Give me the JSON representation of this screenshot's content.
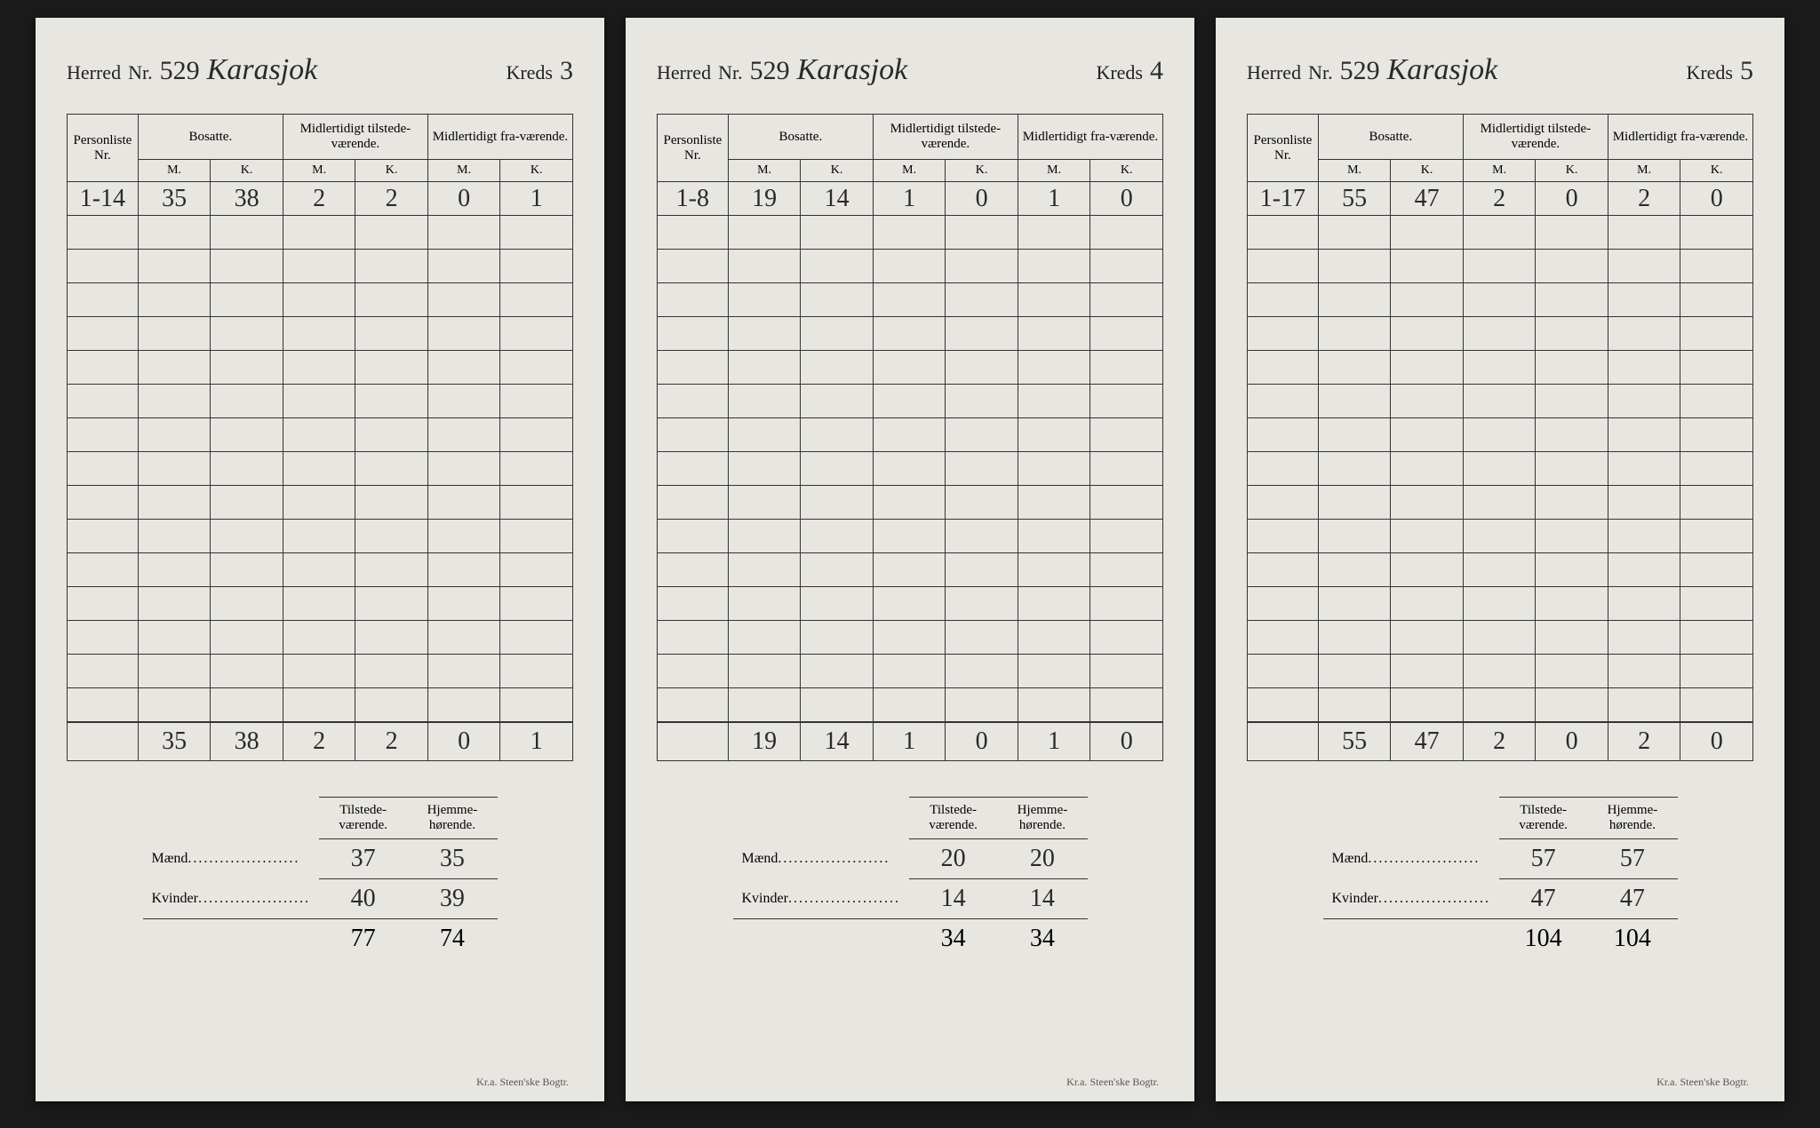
{
  "labels": {
    "herred": "Herred",
    "nr": "Nr.",
    "kreds": "Kreds",
    "personliste": "Personliste",
    "bosatte": "Bosatte.",
    "midl_tilstede": "Midlertidigt tilstede-værende.",
    "midl_fra": "Midlertidigt fra-værende.",
    "m": "M.",
    "k": "K.",
    "tilstede": "Tilstede-værende.",
    "hjemme": "Hjemme-hørende.",
    "maend": "Mænd",
    "kvinder": "Kvinder",
    "footer": "Kr.a.  Steen'ske Bogtr."
  },
  "pages": [
    {
      "herred_nr": "529",
      "herred_name": "Karasjok",
      "kreds": "3",
      "row": {
        "nr": "1-14",
        "bm": "35",
        "bk": "38",
        "tm": "2",
        "tk": "2",
        "fm": "0",
        "fk": "1"
      },
      "totals": {
        "bm": "35",
        "bk": "38",
        "tm": "2",
        "tk": "2",
        "fm": "0",
        "fk": "1"
      },
      "summary": {
        "maend_t": "37",
        "maend_h": "35",
        "kvinder_t": "40",
        "kvinder_h": "39",
        "sum_t": "77",
        "sum_h": "74"
      }
    },
    {
      "herred_nr": "529",
      "herred_name": "Karasjok",
      "kreds": "4",
      "row": {
        "nr": "1-8",
        "bm": "19",
        "bk": "14",
        "tm": "1",
        "tk": "0",
        "fm": "1",
        "fk": "0"
      },
      "totals": {
        "bm": "19",
        "bk": "14",
        "tm": "1",
        "tk": "0",
        "fm": "1",
        "fk": "0"
      },
      "summary": {
        "maend_t": "20",
        "maend_h": "20",
        "kvinder_t": "14",
        "kvinder_h": "14",
        "sum_t": "34",
        "sum_h": "34"
      }
    },
    {
      "herred_nr": "529",
      "herred_name": "Karasjok",
      "kreds": "5",
      "row": {
        "nr": "1-17",
        "bm": "55",
        "bk": "47",
        "tm": "2",
        "tk": "0",
        "fm": "2",
        "fk": "0"
      },
      "totals": {
        "bm": "55",
        "bk": "47",
        "tm": "2",
        "tk": "0",
        "fm": "2",
        "fk": "0"
      },
      "summary": {
        "maend_t": "57",
        "maend_h": "57",
        "kvinder_t": "47",
        "kvinder_h": "47",
        "sum_t": "104",
        "sum_h": "104"
      }
    }
  ],
  "empty_rows": 15,
  "colors": {
    "page_bg": "#e8e6e0",
    "ink": "#2a2a2a",
    "border": "#333333",
    "body_bg": "#1a1a1a"
  }
}
